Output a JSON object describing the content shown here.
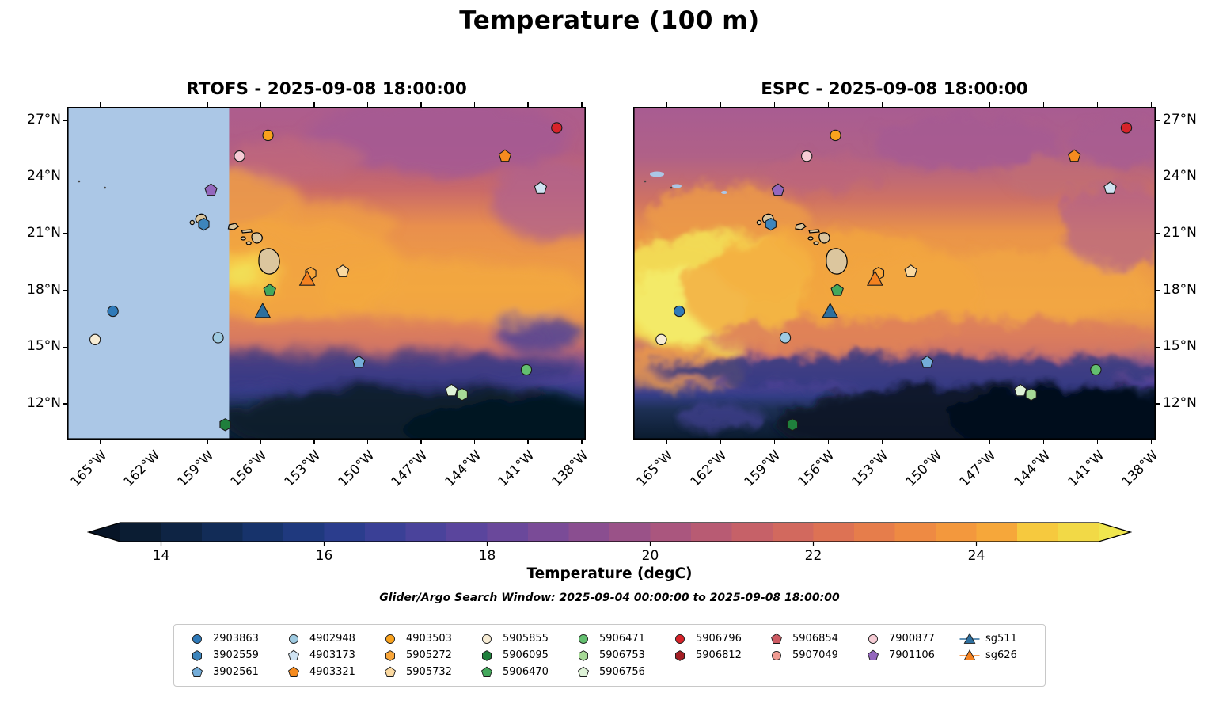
{
  "figure": {
    "title": "Temperature (100 m)",
    "search_window_label": "Glider/Argo Search Window: 2025-09-04 00:00:00 to 2025-09-08 18:00:00"
  },
  "panels": [
    {
      "title": "RTOFS - 2025-09-08 18:00:00"
    },
    {
      "title": "ESPC - 2025-09-08 18:00:00"
    }
  ],
  "axes": {
    "lon_ticks": [
      "165°W",
      "162°W",
      "159°W",
      "156°W",
      "153°W",
      "150°W",
      "147°W",
      "144°W",
      "141°W",
      "138°W"
    ],
    "lat_ticks": [
      "27°N",
      "24°N",
      "21°N",
      "18°N",
      "15°N",
      "12°N"
    ]
  },
  "colorbar": {
    "label": "Temperature (degC)",
    "tick_labels": [
      "14",
      "16",
      "18",
      "20",
      "22",
      "24"
    ],
    "tick_values": [
      14,
      16,
      18,
      20,
      22,
      24
    ],
    "vmin": 13.5,
    "vmax": 25.5,
    "under_color": "#071426",
    "over_color": "#f0e64e",
    "colors": [
      "#0b1d33",
      "#0e2444",
      "#122c57",
      "#17336b",
      "#1f397e",
      "#2b3d8d",
      "#3a4096",
      "#4a439b",
      "#5a459d",
      "#6a489b",
      "#7a4b97",
      "#8a4e90",
      "#9a5288",
      "#aa567e",
      "#b85b73",
      "#c66168",
      "#d2695e",
      "#dd7254",
      "#e67d4b",
      "#ee8a43",
      "#f3983d",
      "#f6a73a",
      "#f6c93e",
      "#f2d946"
    ]
  },
  "legend": {
    "defs": {
      "2903863": {
        "shape": "circle",
        "color": "#2f7ab9"
      },
      "3902559": {
        "shape": "hexagon",
        "color": "#3d85bc"
      },
      "3902561": {
        "shape": "pentagon",
        "color": "#74add9"
      },
      "4902948": {
        "shape": "circle",
        "color": "#9ecae1"
      },
      "4903173": {
        "shape": "pentagon",
        "color": "#cfe3f2"
      },
      "4903321": {
        "shape": "pentagon",
        "color": "#f58b1f"
      },
      "4903503": {
        "shape": "circle",
        "color": "#f9a21d"
      },
      "5905272": {
        "shape": "hexagon",
        "color": "#f9a63a"
      },
      "5905732": {
        "shape": "pentagon",
        "color": "#fbd9a0"
      },
      "5905855": {
        "shape": "circle",
        "color": "#f7ecd4"
      },
      "5906095": {
        "shape": "hexagon",
        "color": "#1f7f3c"
      },
      "5906470": {
        "shape": "pentagon",
        "color": "#44a85c"
      },
      "5906471": {
        "shape": "circle",
        "color": "#63bf6f"
      },
      "5906753": {
        "shape": "hexagon",
        "color": "#a6d996"
      },
      "5906756": {
        "shape": "pentagon",
        "color": "#def2d7"
      },
      "5906796": {
        "shape": "circle",
        "color": "#d8232a"
      },
      "5906812": {
        "shape": "hexagon",
        "color": "#a31e24"
      },
      "5906854": {
        "shape": "pentagon",
        "color": "#cd5a62"
      },
      "5907049": {
        "shape": "circle",
        "color": "#f09b92"
      },
      "7900877": {
        "shape": "circle",
        "color": "#f6ccd5"
      },
      "7901106": {
        "shape": "pentagon",
        "color": "#9467bd"
      },
      "sg511": {
        "shape": "triangle",
        "color": "#2e6f9e",
        "line": true
      },
      "sg626": {
        "shape": "triangle",
        "color": "#f58220",
        "line": true
      }
    },
    "columns": [
      [
        "2903863",
        "3902559",
        "3902561"
      ],
      [
        "4902948",
        "4903173",
        "4903321"
      ],
      [
        "4903503",
        "5905272",
        "5905732"
      ],
      [
        "5905855",
        "5906095",
        "5906470"
      ],
      [
        "5906471",
        "5906753",
        "5906756"
      ],
      [
        "5906796",
        "5906812"
      ],
      [
        "5906854",
        "5907049"
      ],
      [
        "7900877",
        "7901106"
      ],
      [
        "sg511",
        "sg626"
      ]
    ]
  },
  "chart_data": {
    "type": "heatmap",
    "subtype": "geographic-temperature-contour-maps",
    "title": "Temperature (100 m)",
    "panels": [
      {
        "model": "RTOFS",
        "valid_time": "2025-09-08 18:00:00",
        "masked_region": "west of ~158°W shown as light blue (no data)"
      },
      {
        "model": "ESPC",
        "valid_time": "2025-09-08 18:00:00",
        "masked_region": "small specks near 24°N, 163-165°W"
      }
    ],
    "extent": {
      "lon_range_W": [
        166.9,
        137.8
      ],
      "lat_range_N": [
        10.1,
        27.7
      ]
    },
    "colorbar": {
      "label": "Temperature (degC)",
      "ticks": [
        14,
        16,
        18,
        20,
        22,
        24
      ],
      "range_approx": [
        13.5,
        25.5
      ],
      "extend": "both"
    },
    "field_summary": {
      "north_of_23N": "mauve/purple, approx 20-21 degC",
      "central_band_16N_to_22N": "orange, approx 22-24 degC; ESPC shows a bright yellow warm pool (~25 degC) near 15.5-18.5N, 160-166W; RTOFS shows a small warm patch west of Hawaii Island",
      "south_of_13N": "dark navy, approx 13-15 degC"
    },
    "search_window": "2025-09-04 00:00:00 to 2025-09-08 18:00:00",
    "platforms": [
      {
        "id": "2903863",
        "type": "argo-float",
        "lon_W": 164.3,
        "lat_N": 16.9
      },
      {
        "id": "3902559",
        "type": "argo-float",
        "lon_W": 159.2,
        "lat_N": 21.5
      },
      {
        "id": "3902561",
        "type": "argo-float",
        "lon_W": 150.5,
        "lat_N": 14.2
      },
      {
        "id": "4902948",
        "type": "argo-float",
        "lon_W": 158.4,
        "lat_N": 15.5
      },
      {
        "id": "4903173",
        "type": "argo-float",
        "lon_W": 140.3,
        "lat_N": 23.4
      },
      {
        "id": "4903321",
        "type": "argo-float",
        "lon_W": 142.3,
        "lat_N": 25.1
      },
      {
        "id": "4903503",
        "type": "argo-float",
        "lon_W": 155.6,
        "lat_N": 26.2
      },
      {
        "id": "5905272",
        "type": "argo-float",
        "lon_W": 153.2,
        "lat_N": 18.9
      },
      {
        "id": "5905732",
        "type": "argo-float",
        "lon_W": 151.4,
        "lat_N": 19.0
      },
      {
        "id": "5905855",
        "type": "argo-float",
        "lon_W": 165.3,
        "lat_N": 15.4
      },
      {
        "id": "5906095",
        "type": "argo-float",
        "lon_W": 158.0,
        "lat_N": 10.9
      },
      {
        "id": "5906470",
        "type": "argo-float",
        "lon_W": 155.5,
        "lat_N": 18.0
      },
      {
        "id": "5906471",
        "type": "argo-float",
        "lon_W": 141.1,
        "lat_N": 13.8
      },
      {
        "id": "5906753",
        "type": "argo-float",
        "lon_W": 144.7,
        "lat_N": 12.5
      },
      {
        "id": "5906756",
        "type": "argo-float",
        "lon_W": 145.3,
        "lat_N": 12.7
      },
      {
        "id": "5906796",
        "type": "argo-float",
        "lon_W": 139.4,
        "lat_N": 26.6
      },
      {
        "id": "7900877",
        "type": "argo-float",
        "lon_W": 157.2,
        "lat_N": 25.1
      },
      {
        "id": "7901106",
        "type": "argo-float",
        "lon_W": 158.8,
        "lat_N": 23.3
      },
      {
        "id": "sg511",
        "type": "glider",
        "lon_W": 155.9,
        "lat_N": 16.9
      },
      {
        "id": "sg626",
        "type": "glider",
        "lon_W": 153.4,
        "lat_N": 18.6
      }
    ]
  }
}
